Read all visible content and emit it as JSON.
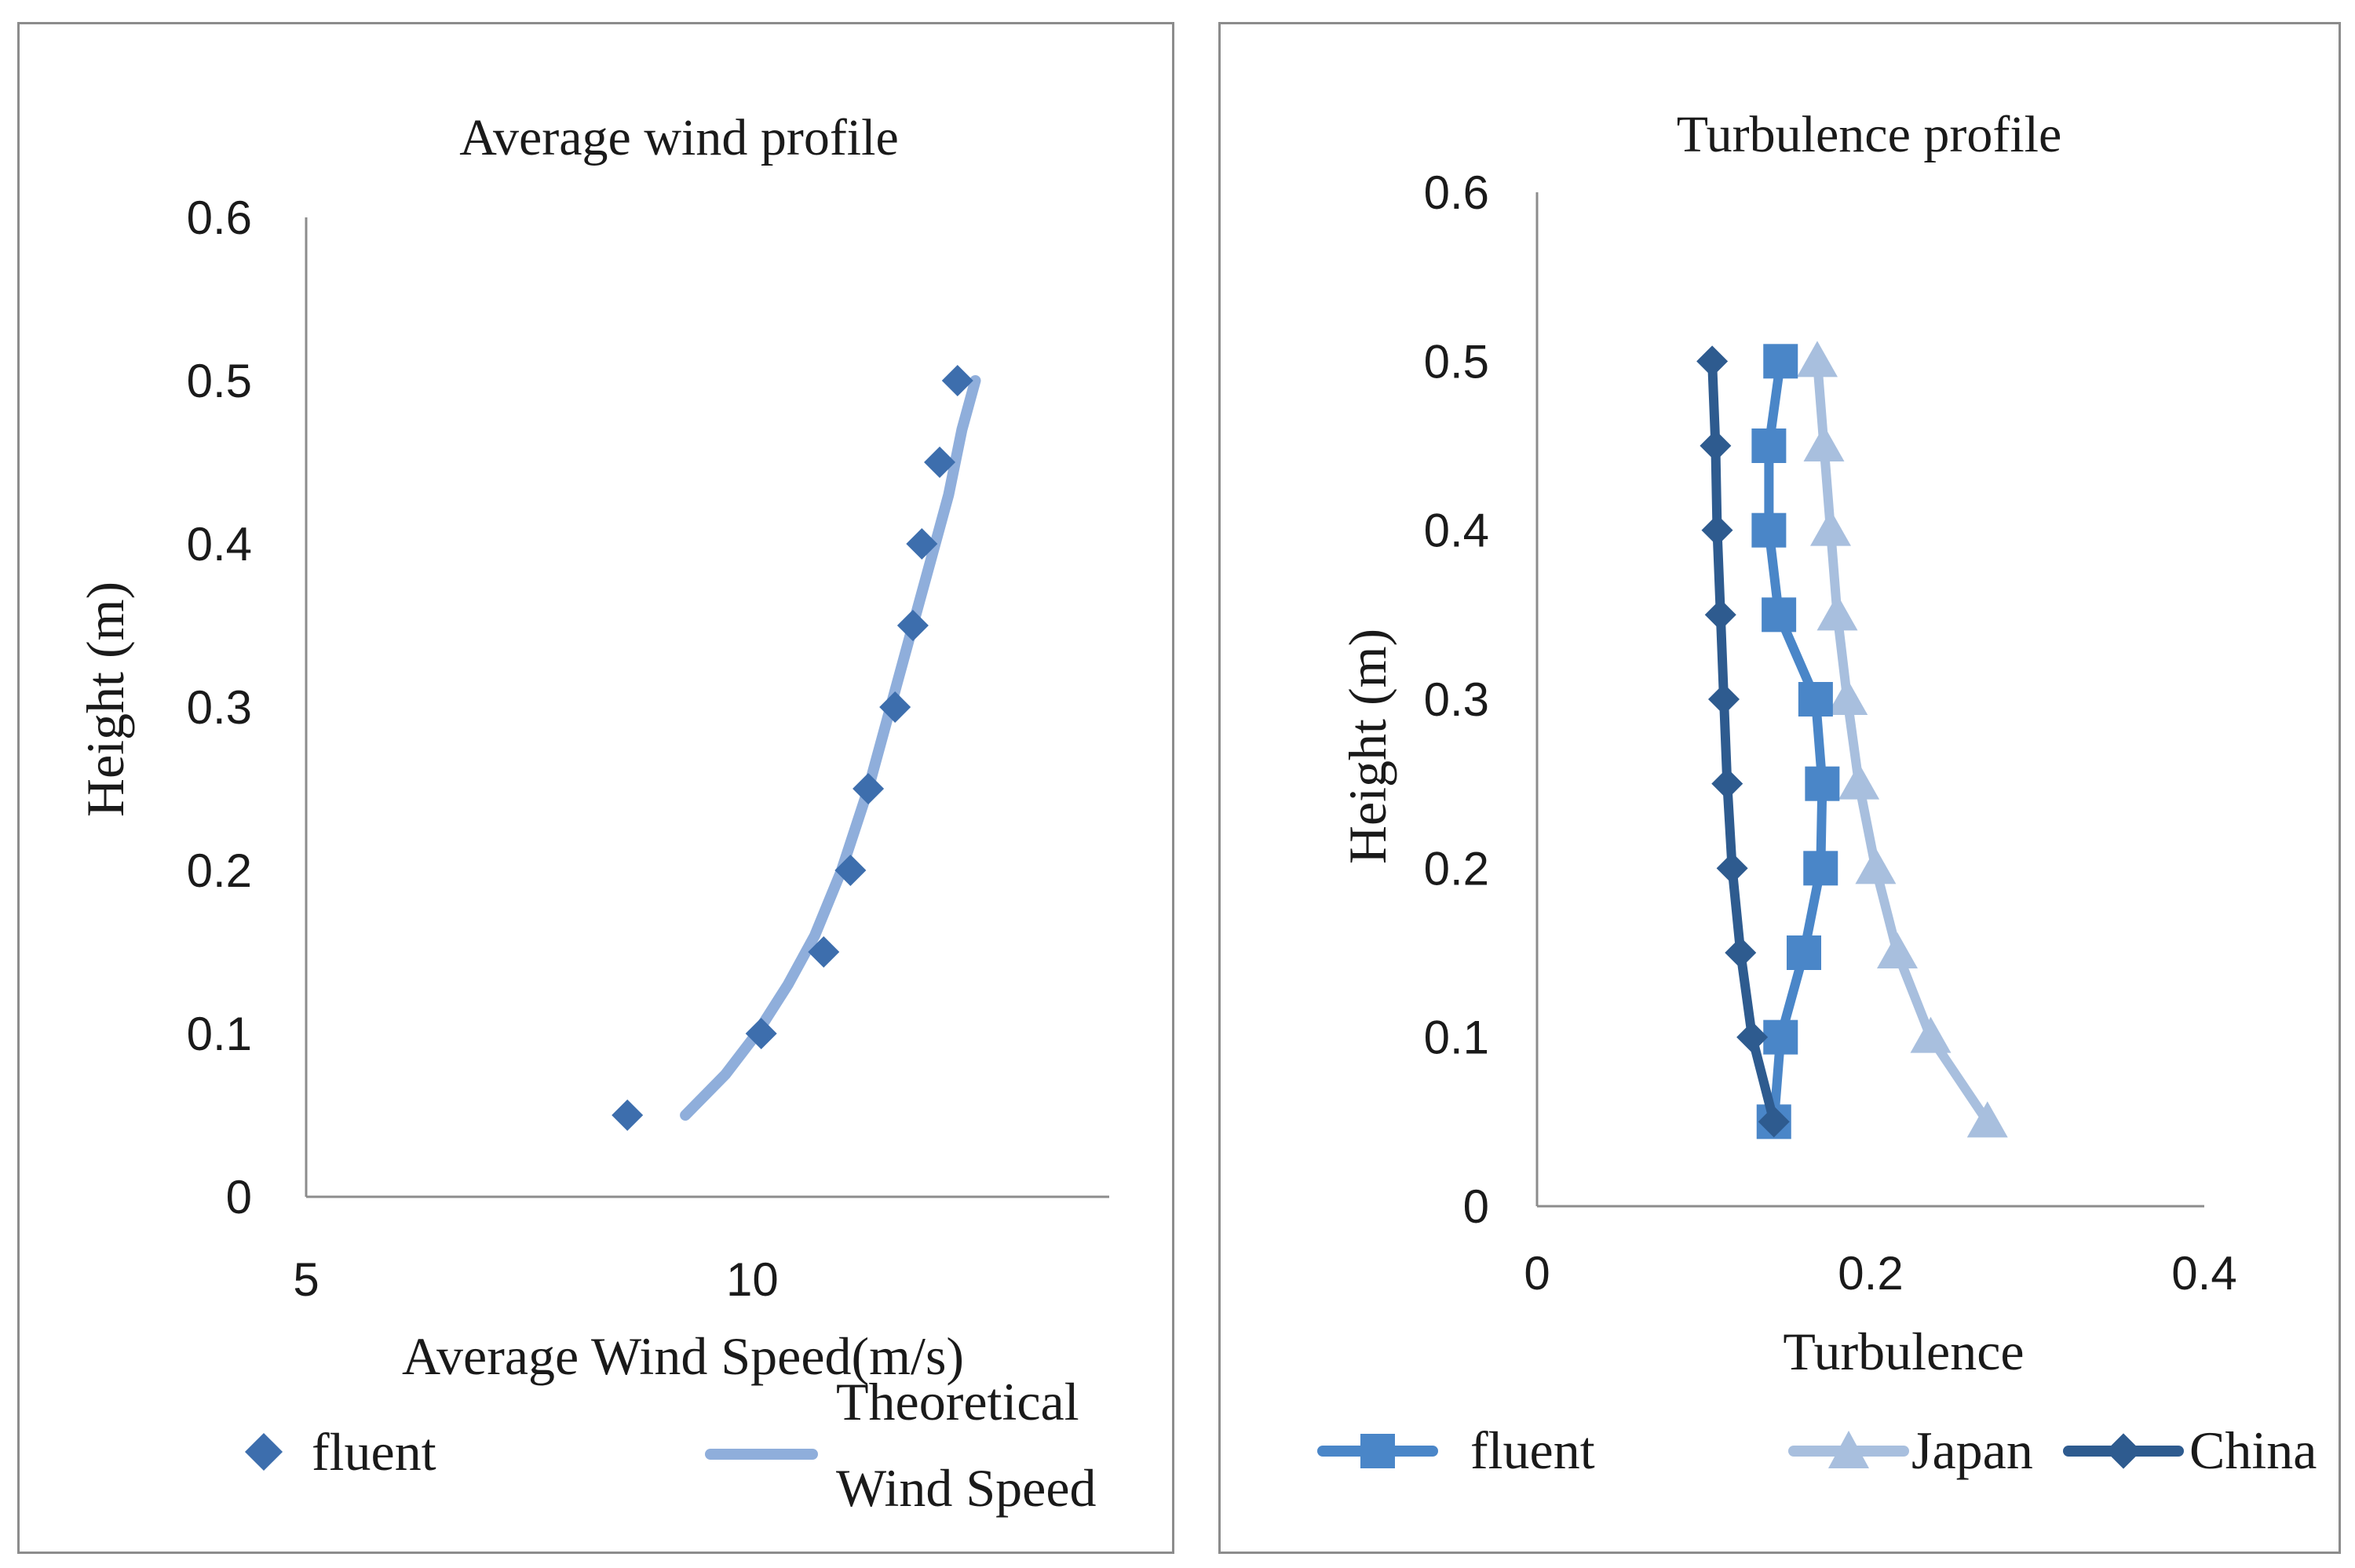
{
  "colors": {
    "fluent_left": "#3d6ead",
    "theoretical": "#8faedb",
    "fluent_right": "#4a86c8",
    "japan": "#a8bfde",
    "china": "#2e5b8f",
    "axis": "#8c8c8c"
  },
  "chart_data": [
    {
      "type": "scatter",
      "title": "Average wind profile",
      "xlabel": "Average Wind Speed(m/s)",
      "ylabel": "Height (m)",
      "xlim": [
        5,
        14
      ],
      "ylim": [
        0,
        0.6
      ],
      "x_ticks": [
        "5",
        "10"
      ],
      "y_ticks": [
        "0",
        "0.1",
        "0.2",
        "0.3",
        "0.4",
        "0.5",
        "0.6"
      ],
      "legend": [
        "fluent",
        "Theoretical",
        "Wind Speed"
      ],
      "series": [
        {
          "name": "fluent",
          "marker": "diamond",
          "x": [
            8.6,
            10.1,
            10.8,
            11.1,
            11.3,
            11.6,
            11.8,
            11.9,
            12.1,
            12.3
          ],
          "y": [
            0.05,
            0.1,
            0.15,
            0.2,
            0.25,
            0.3,
            0.35,
            0.4,
            0.45,
            0.5
          ]
        },
        {
          "name": "Theoretical Wind Speed",
          "marker": "line",
          "x": [
            9.25,
            9.7,
            10.05,
            10.4,
            10.7,
            11.0,
            11.3,
            11.55,
            11.8,
            12.0,
            12.2,
            12.35,
            12.5
          ],
          "y": [
            0.05,
            0.075,
            0.1,
            0.13,
            0.16,
            0.2,
            0.25,
            0.3,
            0.35,
            0.39,
            0.43,
            0.47,
            0.5
          ]
        }
      ]
    },
    {
      "type": "line",
      "title": "Turbulence profile",
      "xlabel": "Turbulence",
      "ylabel": "Height (m)",
      "xlim": [
        0,
        0.4
      ],
      "ylim": [
        0,
        0.6
      ],
      "x_ticks": [
        "0",
        "0.2",
        "0.4"
      ],
      "y_ticks": [
        "0",
        "0.1",
        "0.2",
        "0.3",
        "0.4",
        "0.5",
        "0.6"
      ],
      "legend": [
        "fluent",
        "Japan",
        "China"
      ],
      "series": [
        {
          "name": "fluent",
          "marker": "square",
          "x": [
            0.142,
            0.146,
            0.16,
            0.17,
            0.171,
            0.167,
            0.145,
            0.139,
            0.139,
            0.146
          ],
          "y": [
            0.05,
            0.1,
            0.15,
            0.2,
            0.25,
            0.3,
            0.35,
            0.4,
            0.45,
            0.5
          ]
        },
        {
          "name": "Japan",
          "marker": "triangle",
          "x": [
            0.27,
            0.236,
            0.216,
            0.203,
            0.193,
            0.186,
            0.18,
            0.176,
            0.172,
            0.168
          ],
          "y": [
            0.05,
            0.1,
            0.15,
            0.2,
            0.25,
            0.3,
            0.35,
            0.4,
            0.45,
            0.5
          ]
        },
        {
          "name": "China",
          "marker": "diamond",
          "x": [
            0.142,
            0.129,
            0.122,
            0.117,
            0.114,
            0.112,
            0.11,
            0.108,
            0.107,
            0.105
          ],
          "y": [
            0.05,
            0.1,
            0.15,
            0.2,
            0.25,
            0.3,
            0.35,
            0.4,
            0.45,
            0.5
          ]
        }
      ]
    }
  ]
}
